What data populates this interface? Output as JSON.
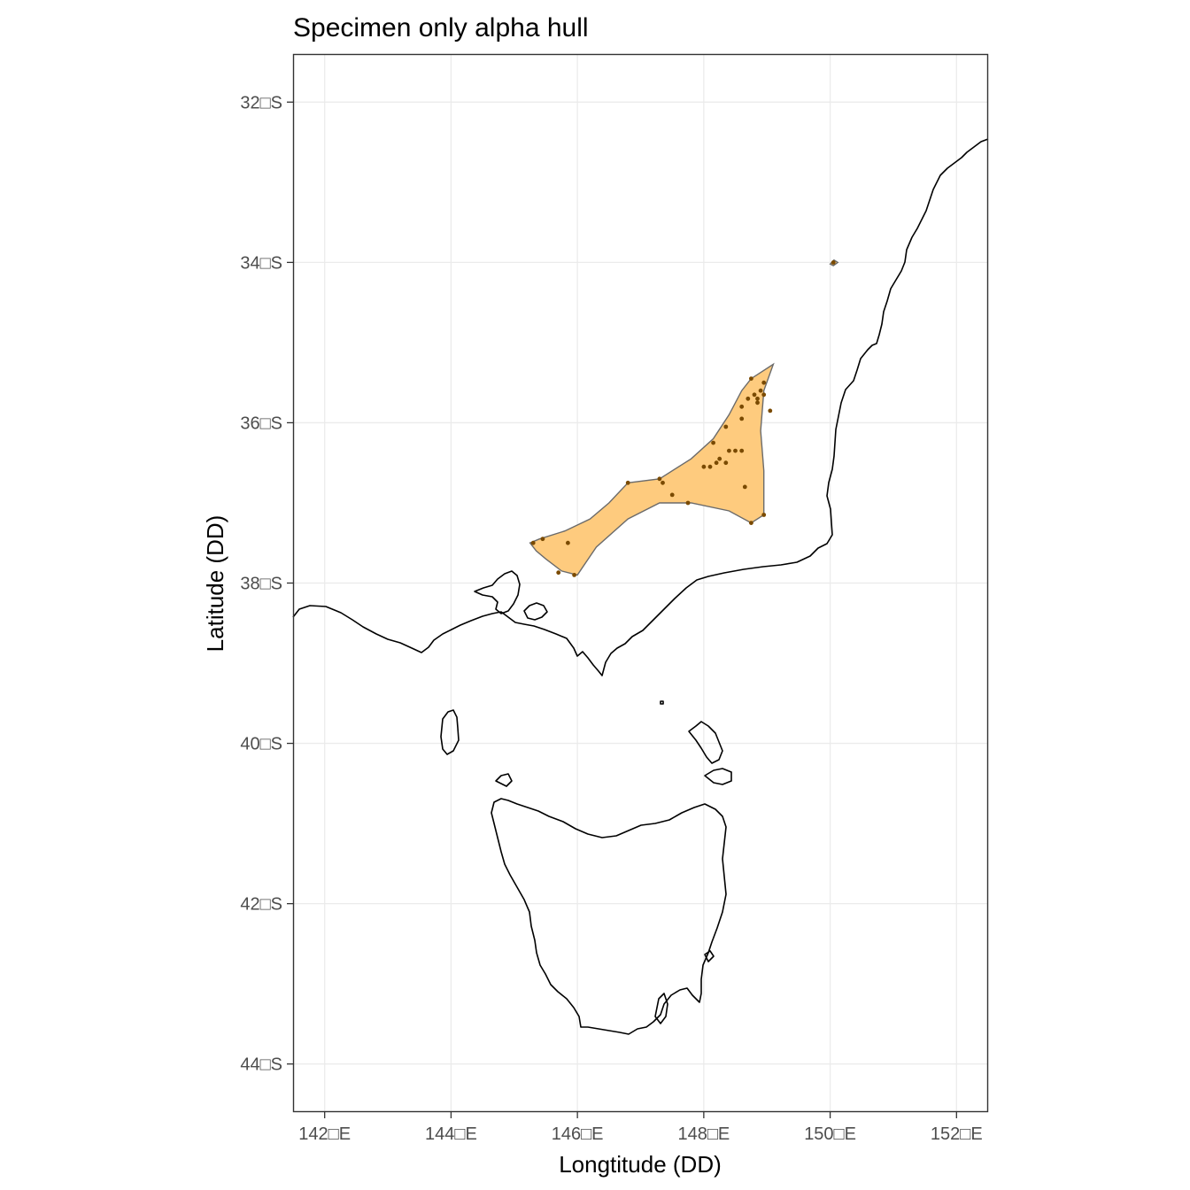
{
  "title": "Specimen only alpha hull",
  "xlabel": "Longtitude (DD)",
  "ylabel": "Latitude (DD)",
  "x_ticks": [
    {
      "value": 142,
      "label": "142□E"
    },
    {
      "value": 144,
      "label": "144□E"
    },
    {
      "value": 146,
      "label": "146□E"
    },
    {
      "value": 148,
      "label": "148□E"
    },
    {
      "value": 150,
      "label": "150□E"
    },
    {
      "value": 152,
      "label": "152□E"
    }
  ],
  "y_ticks": [
    {
      "value": -32,
      "label": "32□S"
    },
    {
      "value": -34,
      "label": "34□S"
    },
    {
      "value": -36,
      "label": "36□S"
    },
    {
      "value": -38,
      "label": "38□S"
    },
    {
      "value": -40,
      "label": "40□S"
    },
    {
      "value": -42,
      "label": "42□S"
    },
    {
      "value": -44,
      "label": "44□S"
    }
  ],
  "colors": {
    "hull_fill": "#fecb7e",
    "hull_stroke": "#6b6b6b",
    "points": "#7a4a00",
    "coastline": "#000000",
    "gridlines": "#ebebeb"
  },
  "chart_data": {
    "type": "map",
    "xlim": [
      141.5,
      152.5
    ],
    "ylim": [
      -44.6,
      -31.4
    ],
    "grid": true,
    "hull_polygons": [
      [
        [
          145.25,
          -37.5
        ],
        [
          145.4,
          -37.45
        ],
        [
          145.8,
          -37.35
        ],
        [
          146.2,
          -37.2
        ],
        [
          146.5,
          -37.0
        ],
        [
          146.8,
          -36.75
        ],
        [
          147.3,
          -36.7
        ],
        [
          147.8,
          -36.45
        ],
        [
          148.15,
          -36.2
        ],
        [
          148.4,
          -35.9
        ],
        [
          148.6,
          -35.6
        ],
        [
          148.75,
          -35.45
        ],
        [
          149.1,
          -35.27
        ],
        [
          148.95,
          -35.6
        ],
        [
          148.9,
          -36.1
        ],
        [
          148.95,
          -36.6
        ],
        [
          148.95,
          -37.15
        ],
        [
          148.75,
          -37.25
        ],
        [
          148.4,
          -37.1
        ],
        [
          147.8,
          -37.0
        ],
        [
          147.3,
          -37.0
        ],
        [
          146.8,
          -37.2
        ],
        [
          146.3,
          -37.55
        ],
        [
          146.0,
          -37.9
        ],
        [
          145.75,
          -37.85
        ],
        [
          145.5,
          -37.7
        ],
        [
          145.35,
          -37.6
        ]
      ],
      [
        [
          150.0,
          -34.02
        ],
        [
          150.06,
          -33.97
        ],
        [
          150.12,
          -34.0
        ],
        [
          150.05,
          -34.04
        ]
      ]
    ],
    "points": [
      [
        145.3,
        -37.5
      ],
      [
        145.45,
        -37.45
      ],
      [
        145.85,
        -37.5
      ],
      [
        145.7,
        -37.87
      ],
      [
        145.95,
        -37.9
      ],
      [
        146.8,
        -36.75
      ],
      [
        147.3,
        -36.7
      ],
      [
        147.35,
        -36.75
      ],
      [
        147.5,
        -36.9
      ],
      [
        147.75,
        -37.0
      ],
      [
        148.0,
        -36.55
      ],
      [
        148.1,
        -36.55
      ],
      [
        148.2,
        -36.5
      ],
      [
        148.25,
        -36.45
      ],
      [
        148.35,
        -36.5
      ],
      [
        148.4,
        -36.35
      ],
      [
        148.5,
        -36.35
      ],
      [
        148.6,
        -36.35
      ],
      [
        148.15,
        -36.25
      ],
      [
        148.35,
        -36.05
      ],
      [
        148.6,
        -35.95
      ],
      [
        148.65,
        -36.8
      ],
      [
        148.7,
        -35.7
      ],
      [
        148.8,
        -35.65
      ],
      [
        148.85,
        -35.7
      ],
      [
        148.9,
        -35.6
      ],
      [
        148.95,
        -35.65
      ],
      [
        148.75,
        -35.45
      ],
      [
        148.95,
        -35.5
      ],
      [
        149.05,
        -35.85
      ],
      [
        148.75,
        -37.25
      ],
      [
        148.95,
        -37.15
      ],
      [
        148.6,
        -35.8
      ],
      [
        148.85,
        -35.75
      ],
      [
        150.05,
        -34.0
      ]
    ]
  }
}
